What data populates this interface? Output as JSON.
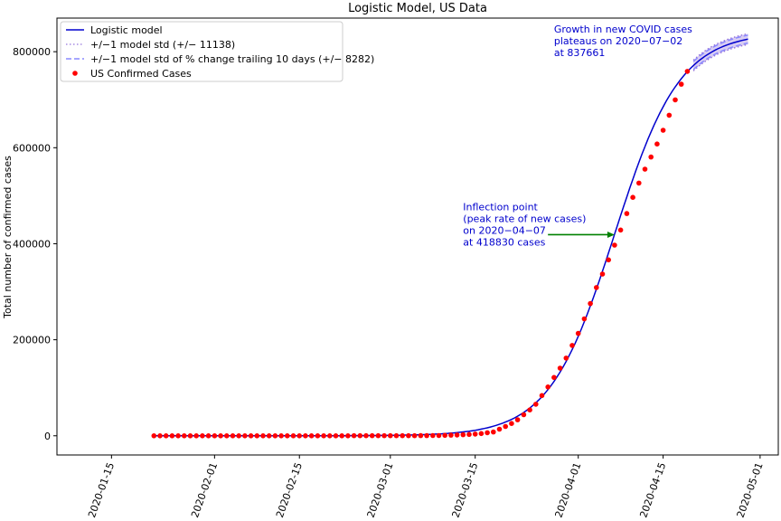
{
  "chart_data": {
    "type": "line",
    "title": "Logistic Model, US Data",
    "xlabel": "",
    "ylabel": "Total number of confirmed cases",
    "xlim": [
      "2020-01-06",
      "2020-05-04"
    ],
    "ylim": [
      -40000,
      870000
    ],
    "x_ticks": [
      "2020-01-15",
      "2020-02-01",
      "2020-02-15",
      "2020-03-01",
      "2020-03-15",
      "2020-04-01",
      "2020-04-15",
      "2020-05-01"
    ],
    "y_ticks": [
      0,
      200000,
      400000,
      600000,
      800000
    ],
    "y_tick_labels": [
      "0",
      "200000",
      "400000",
      "600000",
      "800000"
    ],
    "grid": false,
    "legend_position": "upper-left",
    "legend": [
      "Logistic model",
      "+/−1 model std (+/− 11138)",
      "+/−1 model std of % change trailing 10 days (+/− 8282)",
      "US Confirmed Cases"
    ],
    "colors": {
      "model": "#0000cd",
      "std_band": "#9370db",
      "trailing_band": "#8888ff",
      "cases": "#ff0000",
      "arrow": "#008000",
      "annotation": "#0000cd"
    },
    "model": {
      "K": 840000,
      "inflection_date": "2020-04-07",
      "growth_rate_per_day": 0.186,
      "start": "2020-01-22",
      "end": "2020-04-29"
    },
    "band": {
      "start": "2020-04-20",
      "end": "2020-04-29",
      "std": 11138,
      "trailing_std": 8282
    },
    "cases": [
      [
        "2020-01-22",
        1
      ],
      [
        "2020-01-23",
        1
      ],
      [
        "2020-01-24",
        2
      ],
      [
        "2020-01-25",
        2
      ],
      [
        "2020-01-26",
        5
      ],
      [
        "2020-01-27",
        5
      ],
      [
        "2020-01-28",
        5
      ],
      [
        "2020-01-29",
        5
      ],
      [
        "2020-01-30",
        5
      ],
      [
        "2020-01-31",
        7
      ],
      [
        "2020-02-01",
        8
      ],
      [
        "2020-02-02",
        8
      ],
      [
        "2020-02-03",
        11
      ],
      [
        "2020-02-04",
        11
      ],
      [
        "2020-02-05",
        11
      ],
      [
        "2020-02-06",
        11
      ],
      [
        "2020-02-07",
        11
      ],
      [
        "2020-02-08",
        11
      ],
      [
        "2020-02-09",
        11
      ],
      [
        "2020-02-10",
        11
      ],
      [
        "2020-02-11",
        12
      ],
      [
        "2020-02-12",
        12
      ],
      [
        "2020-02-13",
        13
      ],
      [
        "2020-02-14",
        13
      ],
      [
        "2020-02-15",
        13
      ],
      [
        "2020-02-16",
        13
      ],
      [
        "2020-02-17",
        13
      ],
      [
        "2020-02-18",
        13
      ],
      [
        "2020-02-19",
        13
      ],
      [
        "2020-02-20",
        13
      ],
      [
        "2020-02-21",
        15
      ],
      [
        "2020-02-22",
        15
      ],
      [
        "2020-02-23",
        15
      ],
      [
        "2020-02-24",
        51
      ],
      [
        "2020-02-25",
        51
      ],
      [
        "2020-02-26",
        57
      ],
      [
        "2020-02-27",
        58
      ],
      [
        "2020-02-28",
        60
      ],
      [
        "2020-02-29",
        68
      ],
      [
        "2020-03-01",
        74
      ],
      [
        "2020-03-02",
        98
      ],
      [
        "2020-03-03",
        118
      ],
      [
        "2020-03-04",
        149
      ],
      [
        "2020-03-05",
        217
      ],
      [
        "2020-03-06",
        262
      ],
      [
        "2020-03-07",
        402
      ],
      [
        "2020-03-08",
        518
      ],
      [
        "2020-03-09",
        583
      ],
      [
        "2020-03-10",
        959
      ],
      [
        "2020-03-11",
        1281
      ],
      [
        "2020-03-12",
        1663
      ],
      [
        "2020-03-13",
        2179
      ],
      [
        "2020-03-14",
        2727
      ],
      [
        "2020-03-15",
        3499
      ],
      [
        "2020-03-16",
        4632
      ],
      [
        "2020-03-17",
        6421
      ],
      [
        "2020-03-18",
        7783
      ],
      [
        "2020-03-19",
        13747
      ],
      [
        "2020-03-20",
        19273
      ],
      [
        "2020-03-21",
        25600
      ],
      [
        "2020-03-22",
        33276
      ],
      [
        "2020-03-23",
        43847
      ],
      [
        "2020-03-24",
        53740
      ],
      [
        "2020-03-25",
        65778
      ],
      [
        "2020-03-26",
        83836
      ],
      [
        "2020-03-27",
        101657
      ],
      [
        "2020-03-28",
        121465
      ],
      [
        "2020-03-29",
        140909
      ],
      [
        "2020-03-30",
        161831
      ],
      [
        "2020-03-31",
        188172
      ],
      [
        "2020-04-01",
        213242
      ],
      [
        "2020-04-02",
        243622
      ],
      [
        "2020-04-03",
        275367
      ],
      [
        "2020-04-04",
        308650
      ],
      [
        "2020-04-05",
        336802
      ],
      [
        "2020-04-06",
        366317
      ],
      [
        "2020-04-07",
        397121
      ],
      [
        "2020-04-08",
        428654
      ],
      [
        "2020-04-09",
        462780
      ],
      [
        "2020-04-10",
        496535
      ],
      [
        "2020-04-11",
        526396
      ],
      [
        "2020-04-12",
        555313
      ],
      [
        "2020-04-13",
        580619
      ],
      [
        "2020-04-14",
        607670
      ],
      [
        "2020-04-15",
        636350
      ],
      [
        "2020-04-16",
        667592
      ],
      [
        "2020-04-17",
        699706
      ],
      [
        "2020-04-18",
        732197
      ],
      [
        "2020-04-19",
        759086
      ]
    ],
    "annotations": [
      {
        "lines": [
          "Inflection point",
          "(peak rate of new cases)",
          "on 2020−04−07",
          "at 418830 cases"
        ],
        "text_at": [
          "2020-03-13",
          470000
        ],
        "arrow_from": [
          "2020-03-27",
          418830
        ],
        "arrow_to": [
          "2020-04-07",
          418830
        ]
      },
      {
        "lines": [
          "Growth in new COVID cases",
          "plateaus on 2020−07−02",
          "at 837661"
        ],
        "text_at": [
          "2020-03-28",
          840000
        ]
      }
    ]
  }
}
